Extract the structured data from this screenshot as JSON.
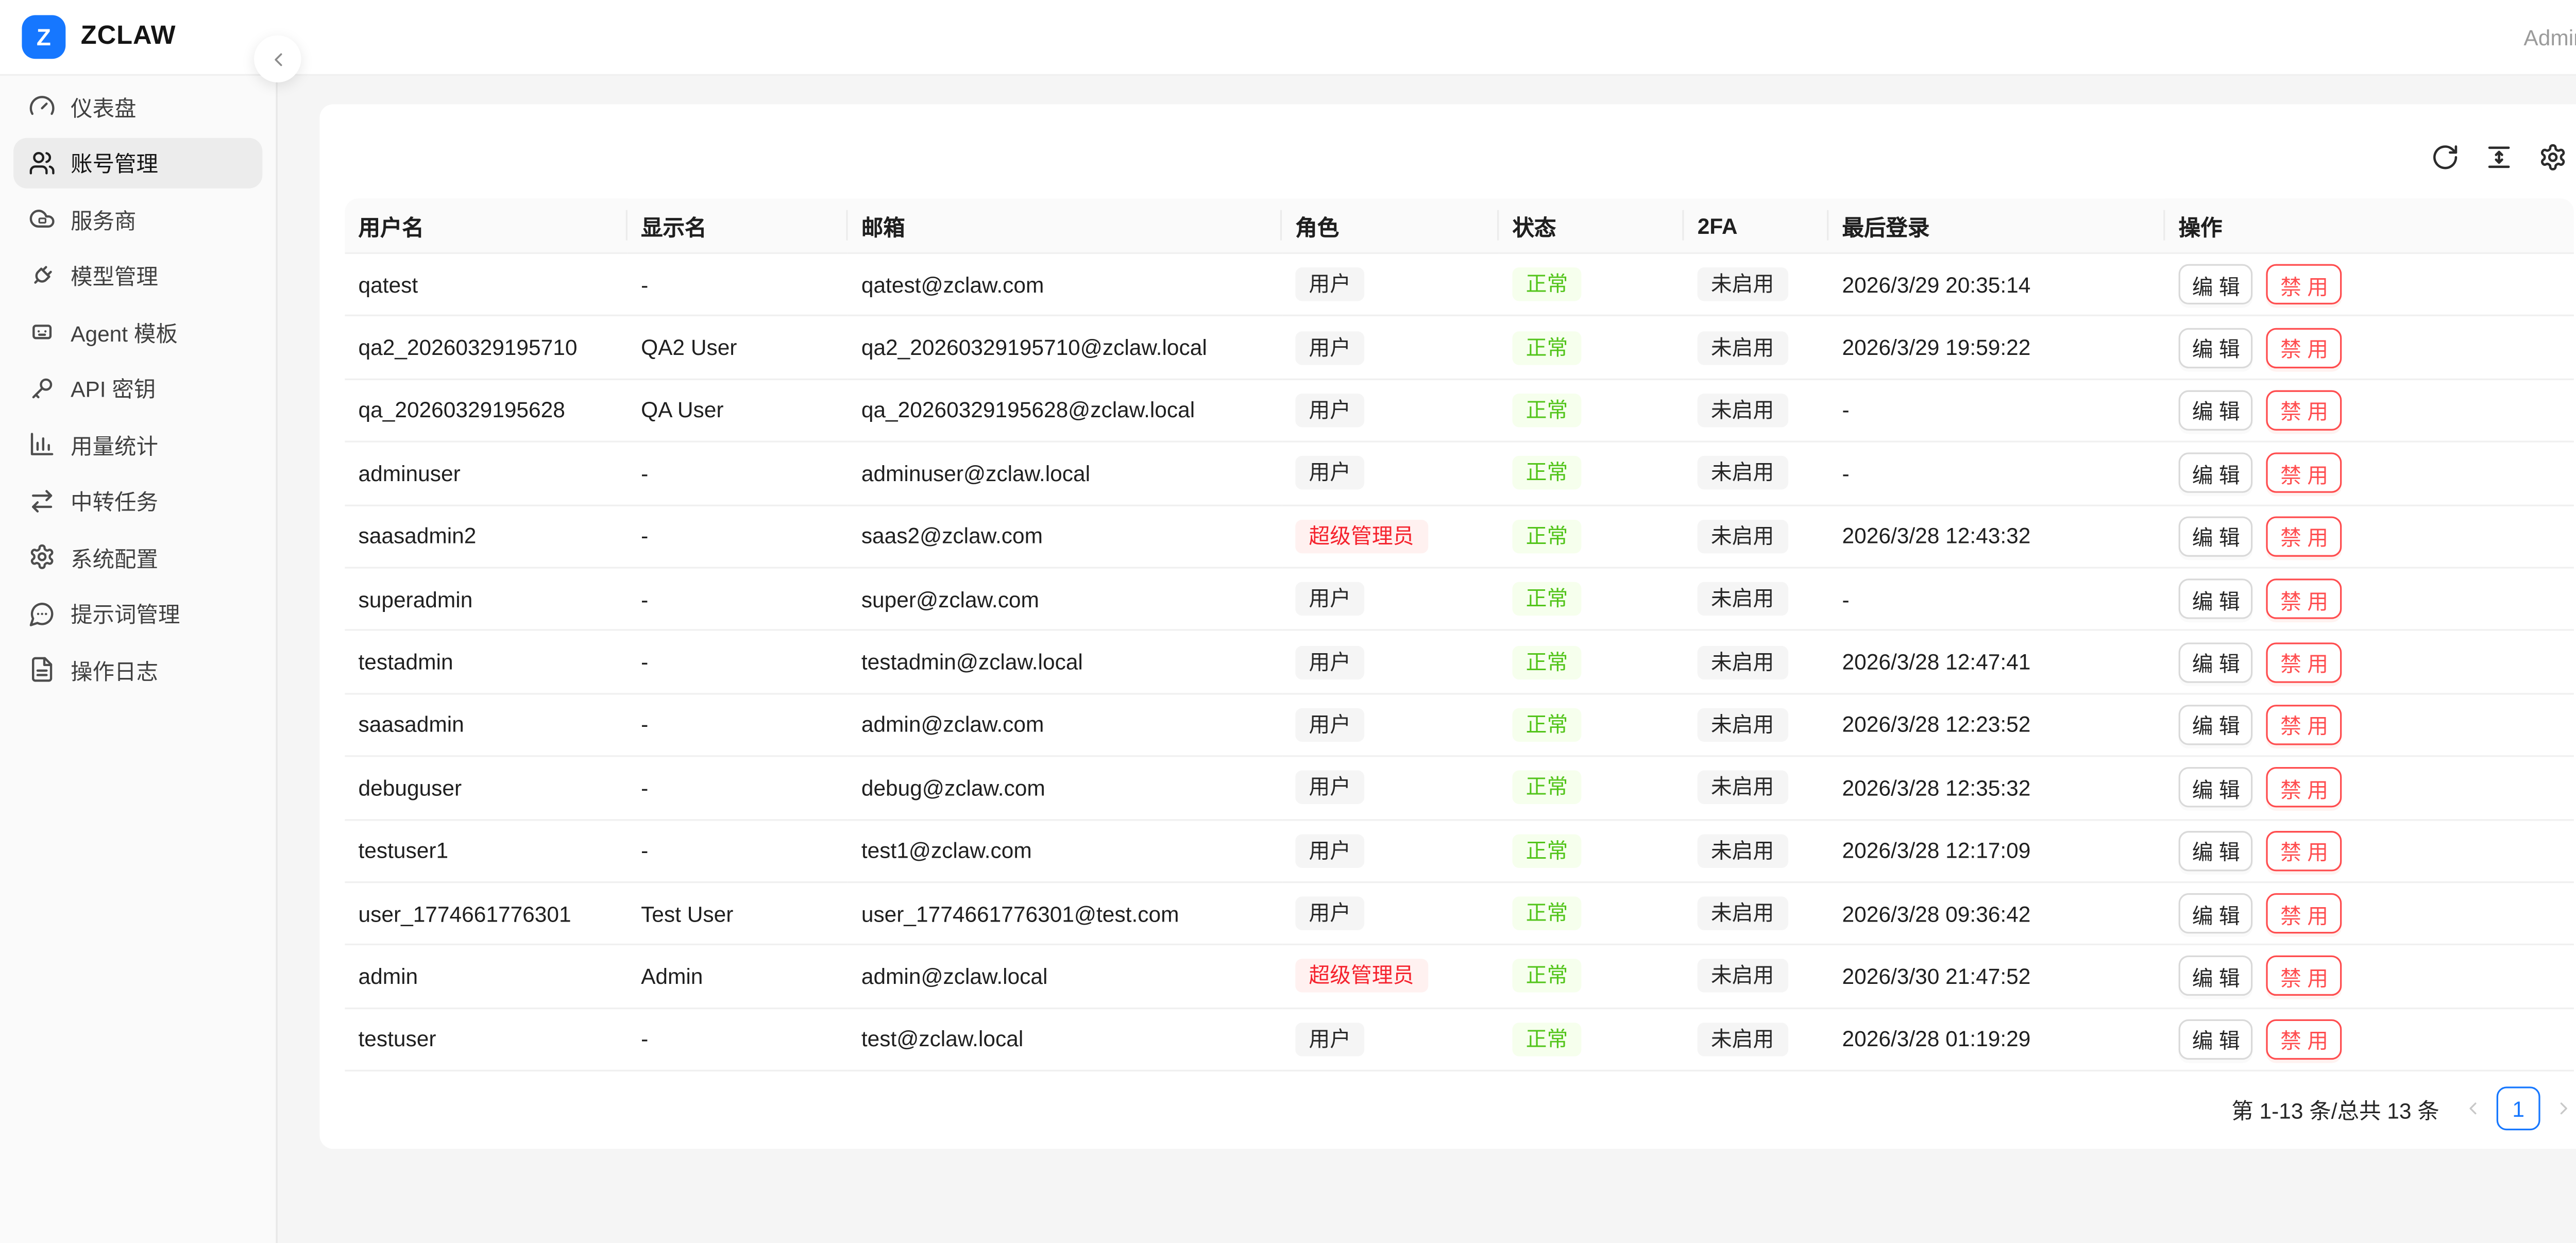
{
  "header": {
    "brand": "ZCLAW",
    "logo_letter": "Z",
    "user_label": "Admin"
  },
  "sidebar": {
    "items": [
      {
        "label": "仪表盘",
        "icon": "gauge",
        "active": false
      },
      {
        "label": "账号管理",
        "icon": "users",
        "active": true
      },
      {
        "label": "服务商",
        "icon": "cloud",
        "active": false
      },
      {
        "label": "模型管理",
        "icon": "plug",
        "active": false
      },
      {
        "label": "Agent 模板",
        "icon": "bot",
        "active": false
      },
      {
        "label": "API 密钥",
        "icon": "key",
        "active": false
      },
      {
        "label": "用量统计",
        "icon": "chart",
        "active": false
      },
      {
        "label": "中转任务",
        "icon": "swap",
        "active": false
      },
      {
        "label": "系统配置",
        "icon": "gear",
        "active": false
      },
      {
        "label": "提示词管理",
        "icon": "message",
        "active": false
      },
      {
        "label": "操作日志",
        "icon": "file",
        "active": false
      }
    ]
  },
  "toolbar": {
    "icons": [
      {
        "name": "reload-icon",
        "icon": "reload"
      },
      {
        "name": "column-height-icon",
        "icon": "colheight"
      },
      {
        "name": "table-settings-icon",
        "icon": "gear"
      }
    ]
  },
  "table": {
    "columns": [
      "用户名",
      "显示名",
      "邮箱",
      "角色",
      "状态",
      "2FA",
      "最后登录",
      "操作"
    ],
    "actions": {
      "edit": "编 辑",
      "disable": "禁 用"
    },
    "rows": [
      {
        "username": "qatest",
        "display_name": "-",
        "email": "qatest@zclaw.com",
        "role": "用户",
        "role_variant": "user",
        "status": "正常",
        "status_variant": "success",
        "twofa": "未启用",
        "last_login": "2026/3/29 20:35:14"
      },
      {
        "username": "qa2_20260329195710",
        "display_name": "QA2 User",
        "email": "qa2_20260329195710@zclaw.local",
        "role": "用户",
        "role_variant": "user",
        "status": "正常",
        "status_variant": "success",
        "twofa": "未启用",
        "last_login": "2026/3/29 19:59:22"
      },
      {
        "username": "qa_20260329195628",
        "display_name": "QA User",
        "email": "qa_20260329195628@zclaw.local",
        "role": "用户",
        "role_variant": "user",
        "status": "正常",
        "status_variant": "success",
        "twofa": "未启用",
        "last_login": "-"
      },
      {
        "username": "adminuser",
        "display_name": "-",
        "email": "adminuser@zclaw.local",
        "role": "用户",
        "role_variant": "user",
        "status": "正常",
        "status_variant": "success",
        "twofa": "未启用",
        "last_login": "-"
      },
      {
        "username": "saasadmin2",
        "display_name": "-",
        "email": "saas2@zclaw.com",
        "role": "超级管理员",
        "role_variant": "super",
        "status": "正常",
        "status_variant": "success",
        "twofa": "未启用",
        "last_login": "2026/3/28 12:43:32"
      },
      {
        "username": "superadmin",
        "display_name": "-",
        "email": "super@zclaw.com",
        "role": "用户",
        "role_variant": "user",
        "status": "正常",
        "status_variant": "success",
        "twofa": "未启用",
        "last_login": "-"
      },
      {
        "username": "testadmin",
        "display_name": "-",
        "email": "testadmin@zclaw.local",
        "role": "用户",
        "role_variant": "user",
        "status": "正常",
        "status_variant": "success",
        "twofa": "未启用",
        "last_login": "2026/3/28 12:47:41"
      },
      {
        "username": "saasadmin",
        "display_name": "-",
        "email": "admin@zclaw.com",
        "role": "用户",
        "role_variant": "user",
        "status": "正常",
        "status_variant": "success",
        "twofa": "未启用",
        "last_login": "2026/3/28 12:23:52"
      },
      {
        "username": "debuguser",
        "display_name": "-",
        "email": "debug@zclaw.com",
        "role": "用户",
        "role_variant": "user",
        "status": "正常",
        "status_variant": "success",
        "twofa": "未启用",
        "last_login": "2026/3/28 12:35:32"
      },
      {
        "username": "testuser1",
        "display_name": "-",
        "email": "test1@zclaw.com",
        "role": "用户",
        "role_variant": "user",
        "status": "正常",
        "status_variant": "success",
        "twofa": "未启用",
        "last_login": "2026/3/28 12:17:09"
      },
      {
        "username": "user_1774661776301",
        "display_name": "Test User",
        "email": "user_1774661776301@test.com",
        "role": "用户",
        "role_variant": "user",
        "status": "正常",
        "status_variant": "success",
        "twofa": "未启用",
        "last_login": "2026/3/28 09:36:42"
      },
      {
        "username": "admin",
        "display_name": "Admin",
        "email": "admin@zclaw.local",
        "role": "超级管理员",
        "role_variant": "super",
        "status": "正常",
        "status_variant": "success",
        "twofa": "未启用",
        "last_login": "2026/3/30 21:47:52"
      },
      {
        "username": "testuser",
        "display_name": "-",
        "email": "test@zclaw.local",
        "role": "用户",
        "role_variant": "user",
        "status": "正常",
        "status_variant": "success",
        "twofa": "未启用",
        "last_login": "2026/3/28 01:19:29"
      }
    ]
  },
  "pagination": {
    "total_text": "第 1-13 条/总共 13 条",
    "current_page": "1"
  },
  "colors": {
    "primary": "#1677ff",
    "success_text": "#52c41a",
    "success_bg": "#f6ffed",
    "danger_text": "#f5222d",
    "danger_bg": "#fff1f0",
    "neutral_tag_bg": "#f5f5f5",
    "disable_button": "#ff4d4f"
  }
}
